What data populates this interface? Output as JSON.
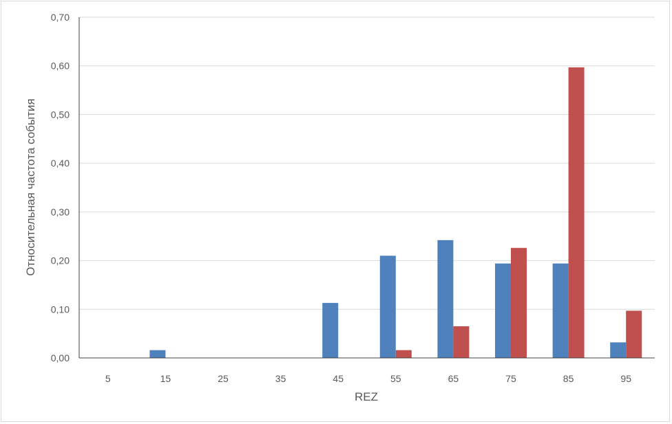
{
  "chart_data": {
    "type": "bar",
    "title": "",
    "xlabel": "REZ",
    "ylabel": "Относительная частота события",
    "categories": [
      "5",
      "15",
      "25",
      "35",
      "45",
      "55",
      "65",
      "75",
      "85",
      "95"
    ],
    "series": [
      {
        "color": "#4f81bd",
        "values": [
          0,
          0.016,
          0,
          0,
          0.113,
          0.21,
          0.242,
          0.194,
          0.194,
          0.032
        ]
      },
      {
        "color": "#c0504d",
        "values": [
          0,
          0,
          0,
          0,
          0,
          0.016,
          0.065,
          0.226,
          0.597,
          0.097
        ]
      }
    ],
    "ylim": [
      0,
      0.7
    ],
    "yticks": [
      "0,00",
      "0,10",
      "0,20",
      "0,30",
      "0,40",
      "0,50",
      "0,60",
      "0,70"
    ],
    "grid": true,
    "legend": "none"
  }
}
